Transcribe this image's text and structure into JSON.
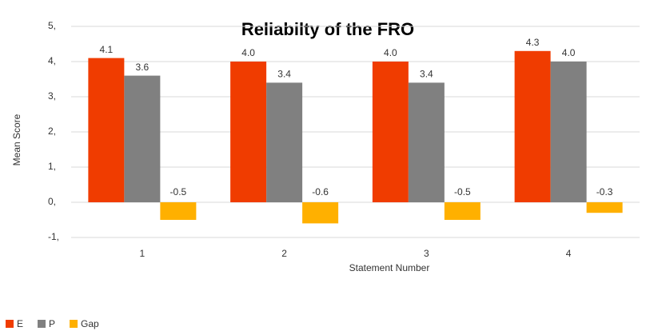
{
  "chart_data": {
    "type": "bar",
    "title": "Reliabilty of the FRO",
    "x_label": "Statement Number",
    "y_label": "Mean Score",
    "categories": [
      "1",
      "2",
      "3",
      "4"
    ],
    "series": [
      {
        "name": "E",
        "color": "#f03c00",
        "values": [
          4.1,
          4.0,
          4.0,
          4.3
        ],
        "value_labels": [
          "4.1",
          "4.0",
          "4.0",
          "4.3"
        ]
      },
      {
        "name": "P",
        "color": "#808080",
        "values": [
          3.6,
          3.4,
          3.4,
          4.0
        ],
        "value_labels": [
          "3.6",
          "3.4",
          "3.4",
          "4.0"
        ]
      },
      {
        "name": "Gap",
        "color": "#ffb000",
        "values": [
          -0.5,
          -0.6,
          -0.5,
          -0.3
        ],
        "value_labels": [
          "-0.5",
          "-0.6",
          "-0.5",
          "-0.3"
        ]
      }
    ],
    "ylim": [
      -1,
      5
    ],
    "yticks": [
      {
        "value": -1,
        "label": "-1,"
      },
      {
        "value": 0,
        "label": "0,"
      },
      {
        "value": 1,
        "label": "1,"
      },
      {
        "value": 2,
        "label": "2,"
      },
      {
        "value": 3,
        "label": "3,"
      },
      {
        "value": 4,
        "label": "4,"
      },
      {
        "value": 5,
        "label": "5,"
      }
    ],
    "grid": true,
    "legend": "bottom-left"
  }
}
